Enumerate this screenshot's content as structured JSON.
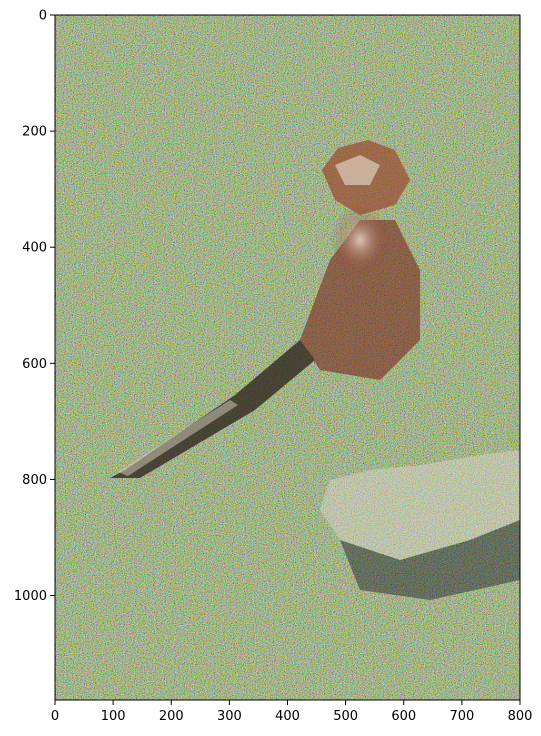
{
  "figure": {
    "image_description_name": "noisy-bird-image",
    "colors": {
      "background": "#ffffff",
      "frame": "#000000",
      "image_base": "#5a6b35",
      "noise_palette": [
        "#7fbf3a",
        "#b23a3a",
        "#3a4fb2",
        "#d8d84a",
        "#4a9a4a",
        "#9a3a9a",
        "#2a2a2a",
        "#c8c8c8"
      ]
    }
  },
  "chart_data": {
    "type": "image",
    "xlim": [
      0,
      800
    ],
    "ylim": [
      1180,
      0
    ],
    "x_ticks": [
      0,
      100,
      200,
      300,
      400,
      500,
      600,
      700,
      800
    ],
    "y_ticks": [
      0,
      200,
      400,
      600,
      800,
      1000
    ],
    "x_tick_labels": [
      "0",
      "100",
      "200",
      "300",
      "400",
      "500",
      "600",
      "700",
      "800"
    ],
    "y_tick_labels": [
      "0",
      "200",
      "400",
      "600",
      "800",
      "1000"
    ],
    "title": "",
    "xlabel": "",
    "ylabel": ""
  }
}
